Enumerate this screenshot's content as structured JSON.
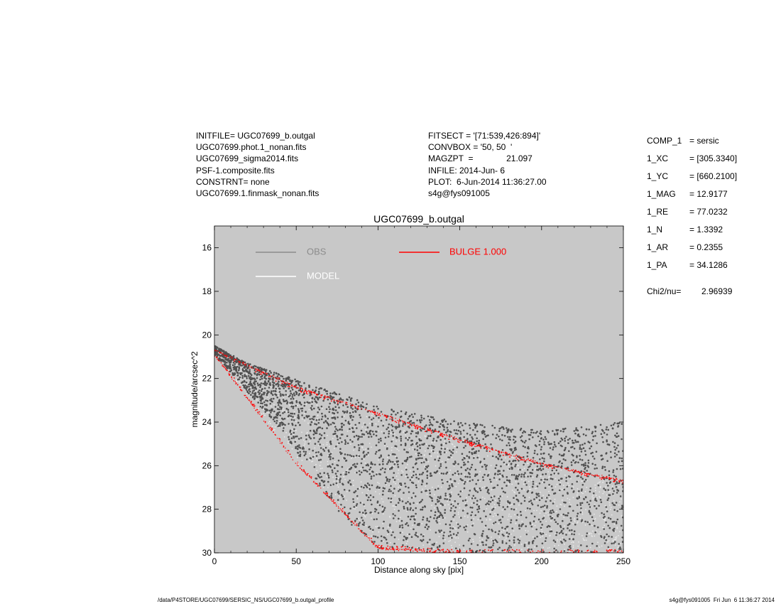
{
  "header_left": [
    "INITFILE= UGC07699_b.outgal",
    "UGC07699.phot.1_nonan.fits",
    "UGC07699_sigma2014.fits",
    "PSF-1.composite.fits",
    "CONSTRNT= none",
    "UGC07699.1.finmask_nonan.fits"
  ],
  "header_mid": [
    "FITSECT = '[71:539,426:894]'",
    "CONVBOX = '50, 50  '",
    "MAGZPT  =              21.097",
    "INFILE: 2014-Jun- 6",
    "PLOT:  6-Jun-2014 11:36:27.00",
    "s4g@fys091005"
  ],
  "params": [
    {
      "key": "COMP_1",
      "value": "= sersic"
    },
    {
      "key": "1_XC",
      "value": "= [305.3340]"
    },
    {
      "key": "1_YC",
      "value": "= [660.2100]"
    },
    {
      "key": "1_MAG",
      "value": "= 12.9177"
    },
    {
      "key": "1_RE",
      "value": "= 77.0232"
    },
    {
      "key": "1_N",
      "value": "= 1.3392"
    },
    {
      "key": "1_AR",
      "value": "= 0.2355"
    },
    {
      "key": "1_PA",
      "value": "= 34.1286"
    }
  ],
  "chi2": {
    "label": "Chi2/nu=",
    "value": "2.96939"
  },
  "footer": {
    "left": "/data/P4STORE/UGC07699/SERSIC_NS/UGC07699_b.outgal_profile",
    "right": "s4g@fys091005  Fri Jun  6 11:36:27 2014"
  },
  "colors": {
    "plot_bg": "#c8c8c8",
    "obs": "#505050",
    "obs_legend": "#8c8c8c",
    "model": "#ffffff",
    "bulge": "#ff0000",
    "model_points": "#e8e8e8"
  },
  "chart_data": {
    "type": "scatter",
    "title": "UGC07699_b.outgal",
    "xlabel": "Distance along sky [pix]",
    "ylabel": "magnitude/arcsec^2",
    "xlim": [
      0,
      250
    ],
    "ylim": [
      30,
      15
    ],
    "y_inverted": true,
    "grid": false,
    "xticks": [
      0,
      50,
      100,
      150,
      200,
      250
    ],
    "yticks": [
      16,
      18,
      20,
      22,
      24,
      26,
      28,
      30
    ],
    "legend": [
      {
        "label": "OBS",
        "color": "#8c8c8c"
      },
      {
        "label": "MODEL",
        "color": "#ffffff"
      },
      {
        "label": "BULGE  1.000",
        "color": "#ff0000"
      }
    ],
    "series": [
      {
        "name": "OBS",
        "kind": "scatter",
        "envelope": [
          {
            "x": 0,
            "bright": 20.5,
            "faint": 20.9
          },
          {
            "x": 20,
            "bright": 21.3,
            "faint": 22.6
          },
          {
            "x": 40,
            "bright": 21.8,
            "faint": 24.3
          },
          {
            "x": 60,
            "bright": 22.3,
            "faint": 26.5
          },
          {
            "x": 80,
            "bright": 22.8,
            "faint": 28.5
          },
          {
            "x": 100,
            "bright": 23.3,
            "faint": 29.8
          },
          {
            "x": 150,
            "bright": 24.0,
            "faint": 30
          },
          {
            "x": 200,
            "bright": 24.4,
            "faint": 30
          },
          {
            "x": 250,
            "bright": 24.0,
            "faint": 30
          }
        ]
      },
      {
        "name": "BULGE  1.000",
        "kind": "scatter",
        "envelope": [
          {
            "x": 0,
            "bright": 20.7,
            "faint": 20.9
          },
          {
            "x": 50,
            "bright": 22.4,
            "faint": 25.9
          },
          {
            "x": 100,
            "bright": 23.6,
            "faint": 29.8
          },
          {
            "x": 150,
            "bright": 24.8,
            "faint": 30
          },
          {
            "x": 200,
            "bright": 25.9,
            "faint": 30
          },
          {
            "x": 250,
            "bright": 26.7,
            "faint": 30
          }
        ]
      }
    ]
  }
}
